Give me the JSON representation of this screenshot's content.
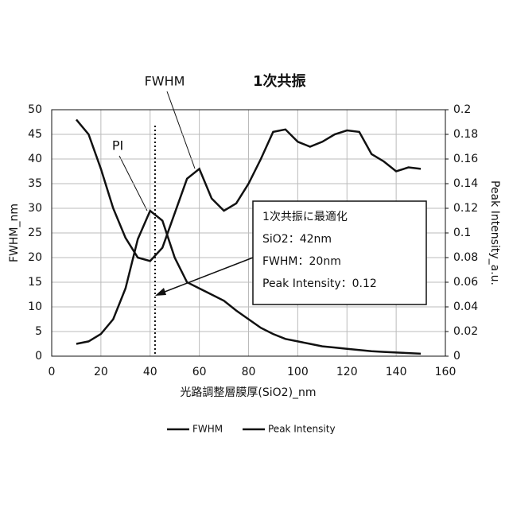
{
  "chart_data": {
    "type": "line",
    "title": "1次共振",
    "x_label": "光路調整層膜厚(SiO2)_nm",
    "y_label": "FWHM_nm",
    "y2_label": "Peak Intensity_a.u.",
    "x": [
      10,
      15,
      20,
      25,
      30,
      35,
      40,
      45,
      50,
      55,
      60,
      65,
      70,
      75,
      80,
      85,
      90,
      95,
      100,
      105,
      110,
      115,
      120,
      125,
      130,
      135,
      140,
      145,
      150
    ],
    "series": [
      {
        "name": "FWHM",
        "color": "#111111",
        "values": [
          48,
          45,
          38,
          30,
          24,
          20,
          19.3,
          22,
          29,
          36,
          38,
          32,
          29.5,
          31,
          35,
          40,
          45.5,
          46,
          43.5,
          42.5,
          43.5,
          45,
          45.8,
          45.5,
          41,
          39.5,
          37.5,
          38.3,
          38
        ]
      },
      {
        "name": "Peak Intensity",
        "color": "#111111",
        "axis": "y2",
        "values": [
          0.01,
          0.012,
          0.018,
          0.03,
          0.055,
          0.095,
          0.118,
          0.11,
          0.08,
          0.06,
          0.055,
          0.05,
          0.045,
          0.037,
          0.03,
          0.023,
          0.018,
          0.014,
          0.012,
          0.01,
          0.008,
          0.007,
          0.006,
          0.005,
          0.004,
          0.0035,
          0.003,
          0.0025,
          0.002
        ]
      }
    ],
    "xlim": [
      0,
      160
    ],
    "xticks": [
      0,
      20,
      40,
      60,
      80,
      100,
      120,
      140,
      160
    ],
    "ylim": [
      0,
      50
    ],
    "yticks": [
      0,
      5,
      10,
      15,
      20,
      25,
      30,
      35,
      40,
      45,
      50
    ],
    "y2lim": [
      0,
      0.2
    ],
    "y2ticks": [
      0,
      0.02,
      0.04,
      0.06,
      0.08,
      0.1,
      0.12,
      0.14,
      0.16,
      0.18,
      0.2
    ],
    "grid": true,
    "annotations": {
      "fwhm_label": "FWHM",
      "pi_label": "PI",
      "box": [
        "1次共振に最適化",
        "SiO2：42nm",
        "FWHM：20nm",
        "Peak Intensity：0.12"
      ]
    },
    "marker_x": 42
  }
}
